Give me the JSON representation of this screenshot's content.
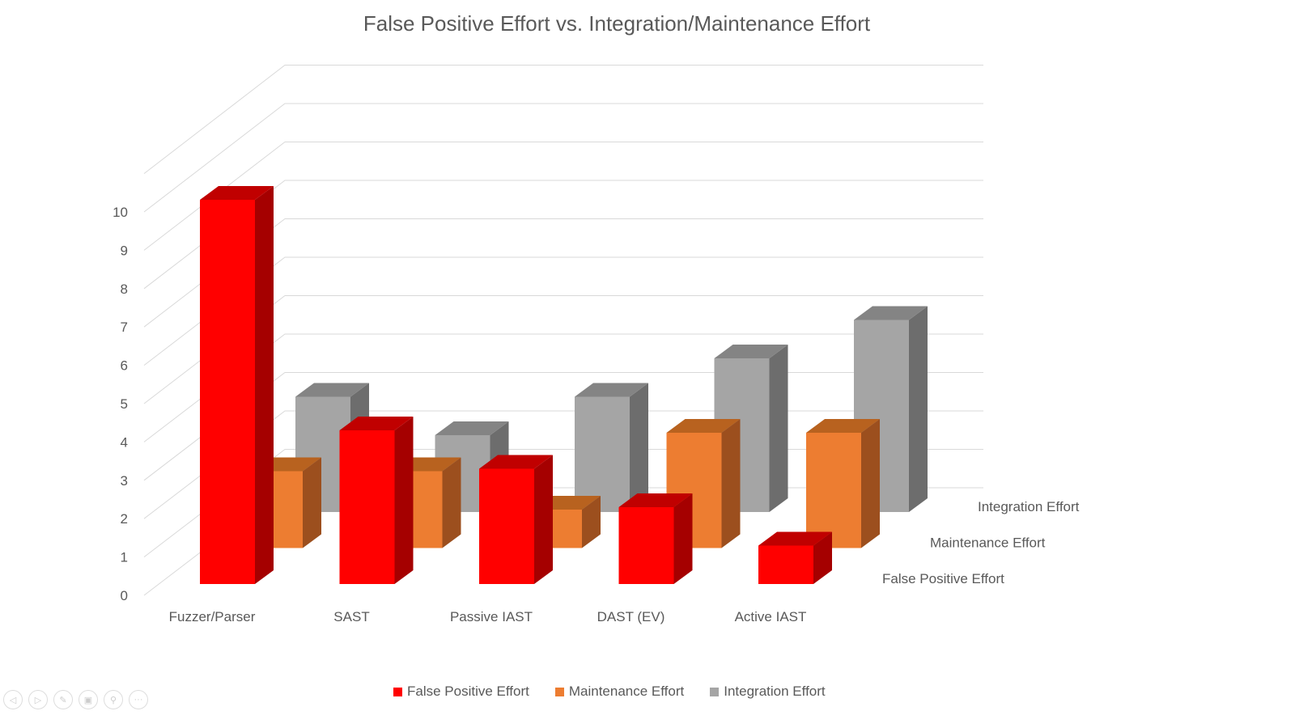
{
  "chart_data": {
    "type": "bar3d",
    "title": "False Positive Effort vs. Integration/Maintenance Effort",
    "categories": [
      "Fuzzer/Parser",
      "SAST",
      "Passive IAST",
      "DAST (EV)",
      "Active IAST"
    ],
    "ylim": [
      0,
      10
    ],
    "yticks": [
      "0",
      "1",
      "2",
      "3",
      "4",
      "5",
      "6",
      "7",
      "8",
      "9",
      "10"
    ],
    "grid": true,
    "legend_position": "bottom",
    "series": [
      {
        "name": "False Positive Effort",
        "values": [
          10,
          4,
          3,
          2,
          1
        ],
        "color": "#FF0000",
        "side": "#A50000",
        "top": "#C00000"
      },
      {
        "name": "Maintenance Effort",
        "values": [
          2,
          2,
          1,
          3,
          3
        ],
        "color": "#ED7D31",
        "side": "#9C4F1E",
        "top": "#B8621F"
      },
      {
        "name": "Integration Effort",
        "values": [
          3,
          2,
          3,
          4,
          5
        ],
        "color": "#A5A5A5",
        "side": "#6D6D6D",
        "top": "#848484"
      }
    ]
  },
  "slideshow_controls": [
    "previous-icon",
    "next-icon",
    "pen-icon",
    "slides-icon",
    "zoom-icon",
    "more-icon"
  ],
  "control_glyphs": [
    "◁",
    "▷",
    "✎",
    "▣",
    "⚲",
    "···"
  ]
}
